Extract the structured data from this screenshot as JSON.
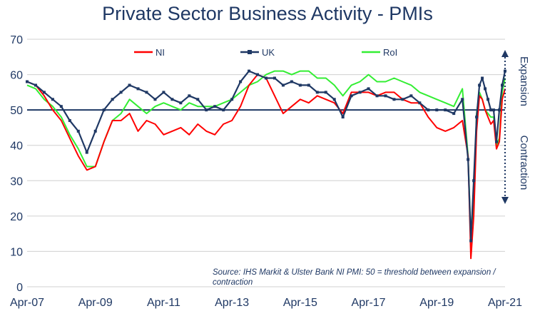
{
  "chart_data": {
    "type": "line",
    "title": "Private Sector Business Activity - PMIs",
    "ylim": [
      0,
      70
    ],
    "y_ticks": [
      0,
      10,
      20,
      30,
      40,
      50,
      60,
      70
    ],
    "x_range": [
      "2007-04",
      "2021-04"
    ],
    "x_ticks": [
      "Apr-07",
      "Apr-09",
      "Apr-11",
      "Apr-13",
      "Apr-15",
      "Apr-17",
      "Apr-19",
      "Apr-21"
    ],
    "threshold": 50,
    "grid": "horizontal",
    "legend_position": "top",
    "side_labels": {
      "expansion": "Expansion",
      "contraction": "Contraction"
    },
    "source": "Source: IHS Markit & Ulster Bank NI PMI: 50 = threshold between expansion / contraction",
    "series": [
      {
        "name": "NI",
        "color": "#ff0000",
        "points": [
          [
            "2007-04",
            58
          ],
          [
            "2007-07",
            57
          ],
          [
            "2007-10",
            54
          ],
          [
            "2008-01",
            50
          ],
          [
            "2008-04",
            47
          ],
          [
            "2008-07",
            42
          ],
          [
            "2008-10",
            37
          ],
          [
            "2009-01",
            33
          ],
          [
            "2009-04",
            34
          ],
          [
            "2009-07",
            41
          ],
          [
            "2009-10",
            47
          ],
          [
            "2010-01",
            47
          ],
          [
            "2010-04",
            49
          ],
          [
            "2010-07",
            44
          ],
          [
            "2010-10",
            47
          ],
          [
            "2011-01",
            46
          ],
          [
            "2011-04",
            43
          ],
          [
            "2011-07",
            44
          ],
          [
            "2011-10",
            45
          ],
          [
            "2012-01",
            43
          ],
          [
            "2012-04",
            46
          ],
          [
            "2012-07",
            44
          ],
          [
            "2012-10",
            43
          ],
          [
            "2013-01",
            46
          ],
          [
            "2013-04",
            47
          ],
          [
            "2013-07",
            51
          ],
          [
            "2013-10",
            57
          ],
          [
            "2014-01",
            60
          ],
          [
            "2014-04",
            59
          ],
          [
            "2014-07",
            54
          ],
          [
            "2014-10",
            49
          ],
          [
            "2015-01",
            51
          ],
          [
            "2015-04",
            53
          ],
          [
            "2015-07",
            52
          ],
          [
            "2015-10",
            54
          ],
          [
            "2016-01",
            53
          ],
          [
            "2016-04",
            52
          ],
          [
            "2016-07",
            49
          ],
          [
            "2016-10",
            55
          ],
          [
            "2017-01",
            55
          ],
          [
            "2017-04",
            55
          ],
          [
            "2017-07",
            54
          ],
          [
            "2017-10",
            55
          ],
          [
            "2018-01",
            55
          ],
          [
            "2018-04",
            53
          ],
          [
            "2018-07",
            52
          ],
          [
            "2018-10",
            52
          ],
          [
            "2019-01",
            48
          ],
          [
            "2019-04",
            45
          ],
          [
            "2019-07",
            44
          ],
          [
            "2019-10",
            45
          ],
          [
            "2020-01",
            47
          ],
          [
            "2020-03",
            37
          ],
          [
            "2020-04",
            8
          ],
          [
            "2020-05",
            20
          ],
          [
            "2020-06",
            44
          ],
          [
            "2020-07",
            54
          ],
          [
            "2020-08",
            53
          ],
          [
            "2020-09",
            50
          ],
          [
            "2020-10",
            48
          ],
          [
            "2020-11",
            46
          ],
          [
            "2020-12",
            47
          ],
          [
            "2021-01",
            39
          ],
          [
            "2021-02",
            41
          ],
          [
            "2021-03",
            53
          ],
          [
            "2021-04",
            56
          ]
        ]
      },
      {
        "name": "UK",
        "color": "#1f3864",
        "points": [
          [
            "2007-04",
            58
          ],
          [
            "2007-07",
            57
          ],
          [
            "2007-10",
            55
          ],
          [
            "2008-01",
            53
          ],
          [
            "2008-04",
            51
          ],
          [
            "2008-07",
            47
          ],
          [
            "2008-10",
            44
          ],
          [
            "2009-01",
            38
          ],
          [
            "2009-04",
            44
          ],
          [
            "2009-07",
            50
          ],
          [
            "2009-10",
            53
          ],
          [
            "2010-01",
            55
          ],
          [
            "2010-04",
            57
          ],
          [
            "2010-07",
            56
          ],
          [
            "2010-10",
            55
          ],
          [
            "2011-01",
            53
          ],
          [
            "2011-04",
            55
          ],
          [
            "2011-07",
            53
          ],
          [
            "2011-10",
            52
          ],
          [
            "2012-01",
            54
          ],
          [
            "2012-04",
            53
          ],
          [
            "2012-07",
            50
          ],
          [
            "2012-10",
            51
          ],
          [
            "2013-01",
            50
          ],
          [
            "2013-04",
            53
          ],
          [
            "2013-07",
            58
          ],
          [
            "2013-10",
            61
          ],
          [
            "2014-01",
            60
          ],
          [
            "2014-04",
            59
          ],
          [
            "2014-07",
            59
          ],
          [
            "2014-10",
            57
          ],
          [
            "2015-01",
            58
          ],
          [
            "2015-04",
            57
          ],
          [
            "2015-07",
            57
          ],
          [
            "2015-10",
            55
          ],
          [
            "2016-01",
            55
          ],
          [
            "2016-04",
            53
          ],
          [
            "2016-07",
            48
          ],
          [
            "2016-10",
            54
          ],
          [
            "2017-01",
            55
          ],
          [
            "2017-04",
            56
          ],
          [
            "2017-07",
            54
          ],
          [
            "2017-10",
            54
          ],
          [
            "2018-01",
            53
          ],
          [
            "2018-04",
            53
          ],
          [
            "2018-07",
            54
          ],
          [
            "2018-10",
            52
          ],
          [
            "2019-01",
            50
          ],
          [
            "2019-04",
            50
          ],
          [
            "2019-07",
            50
          ],
          [
            "2019-10",
            49
          ],
          [
            "2020-01",
            53
          ],
          [
            "2020-03",
            36
          ],
          [
            "2020-04",
            13
          ],
          [
            "2020-05",
            30
          ],
          [
            "2020-06",
            48
          ],
          [
            "2020-07",
            57
          ],
          [
            "2020-08",
            59
          ],
          [
            "2020-09",
            56
          ],
          [
            "2020-10",
            53
          ],
          [
            "2020-11",
            50
          ],
          [
            "2020-12",
            50
          ],
          [
            "2021-01",
            41
          ],
          [
            "2021-02",
            50
          ],
          [
            "2021-03",
            57
          ],
          [
            "2021-04",
            61
          ]
        ]
      },
      {
        "name": "RoI",
        "color": "#33ee33",
        "points": [
          [
            "2007-04",
            57
          ],
          [
            "2007-07",
            56
          ],
          [
            "2007-10",
            53
          ],
          [
            "2008-01",
            51
          ],
          [
            "2008-04",
            48
          ],
          [
            "2008-07",
            43
          ],
          [
            "2008-10",
            39
          ],
          [
            "2009-01",
            34
          ],
          [
            "2009-04",
            34
          ],
          [
            "2009-07",
            41
          ],
          [
            "2009-10",
            47
          ],
          [
            "2010-01",
            49
          ],
          [
            "2010-04",
            53
          ],
          [
            "2010-07",
            51
          ],
          [
            "2010-10",
            49
          ],
          [
            "2011-01",
            51
          ],
          [
            "2011-04",
            52
          ],
          [
            "2011-07",
            51
          ],
          [
            "2011-10",
            50
          ],
          [
            "2012-01",
            52
          ],
          [
            "2012-04",
            51
          ],
          [
            "2012-07",
            51
          ],
          [
            "2012-10",
            51
          ],
          [
            "2013-01",
            52
          ],
          [
            "2013-04",
            53
          ],
          [
            "2013-07",
            55
          ],
          [
            "2013-10",
            57
          ],
          [
            "2014-01",
            58
          ],
          [
            "2014-04",
            60
          ],
          [
            "2014-07",
            61
          ],
          [
            "2014-10",
            61
          ],
          [
            "2015-01",
            60
          ],
          [
            "2015-04",
            61
          ],
          [
            "2015-07",
            61
          ],
          [
            "2015-10",
            59
          ],
          [
            "2016-01",
            59
          ],
          [
            "2016-04",
            57
          ],
          [
            "2016-07",
            54
          ],
          [
            "2016-10",
            57
          ],
          [
            "2017-01",
            58
          ],
          [
            "2017-04",
            60
          ],
          [
            "2017-07",
            58
          ],
          [
            "2017-10",
            58
          ],
          [
            "2018-01",
            59
          ],
          [
            "2018-04",
            58
          ],
          [
            "2018-07",
            57
          ],
          [
            "2018-10",
            55
          ],
          [
            "2019-01",
            54
          ],
          [
            "2019-04",
            53
          ],
          [
            "2019-07",
            52
          ],
          [
            "2019-10",
            51
          ],
          [
            "2020-01",
            56
          ],
          [
            "2020-03",
            37
          ],
          [
            "2020-04",
            14
          ],
          [
            "2020-05",
            25
          ],
          [
            "2020-06",
            49
          ],
          [
            "2020-07",
            55
          ],
          [
            "2020-08",
            53
          ],
          [
            "2020-09",
            50
          ],
          [
            "2020-10",
            49
          ],
          [
            "2020-11",
            48
          ],
          [
            "2020-12",
            48
          ],
          [
            "2021-01",
            40
          ],
          [
            "2021-02",
            42
          ],
          [
            "2021-03",
            55
          ],
          [
            "2021-04",
            59
          ]
        ]
      }
    ]
  }
}
